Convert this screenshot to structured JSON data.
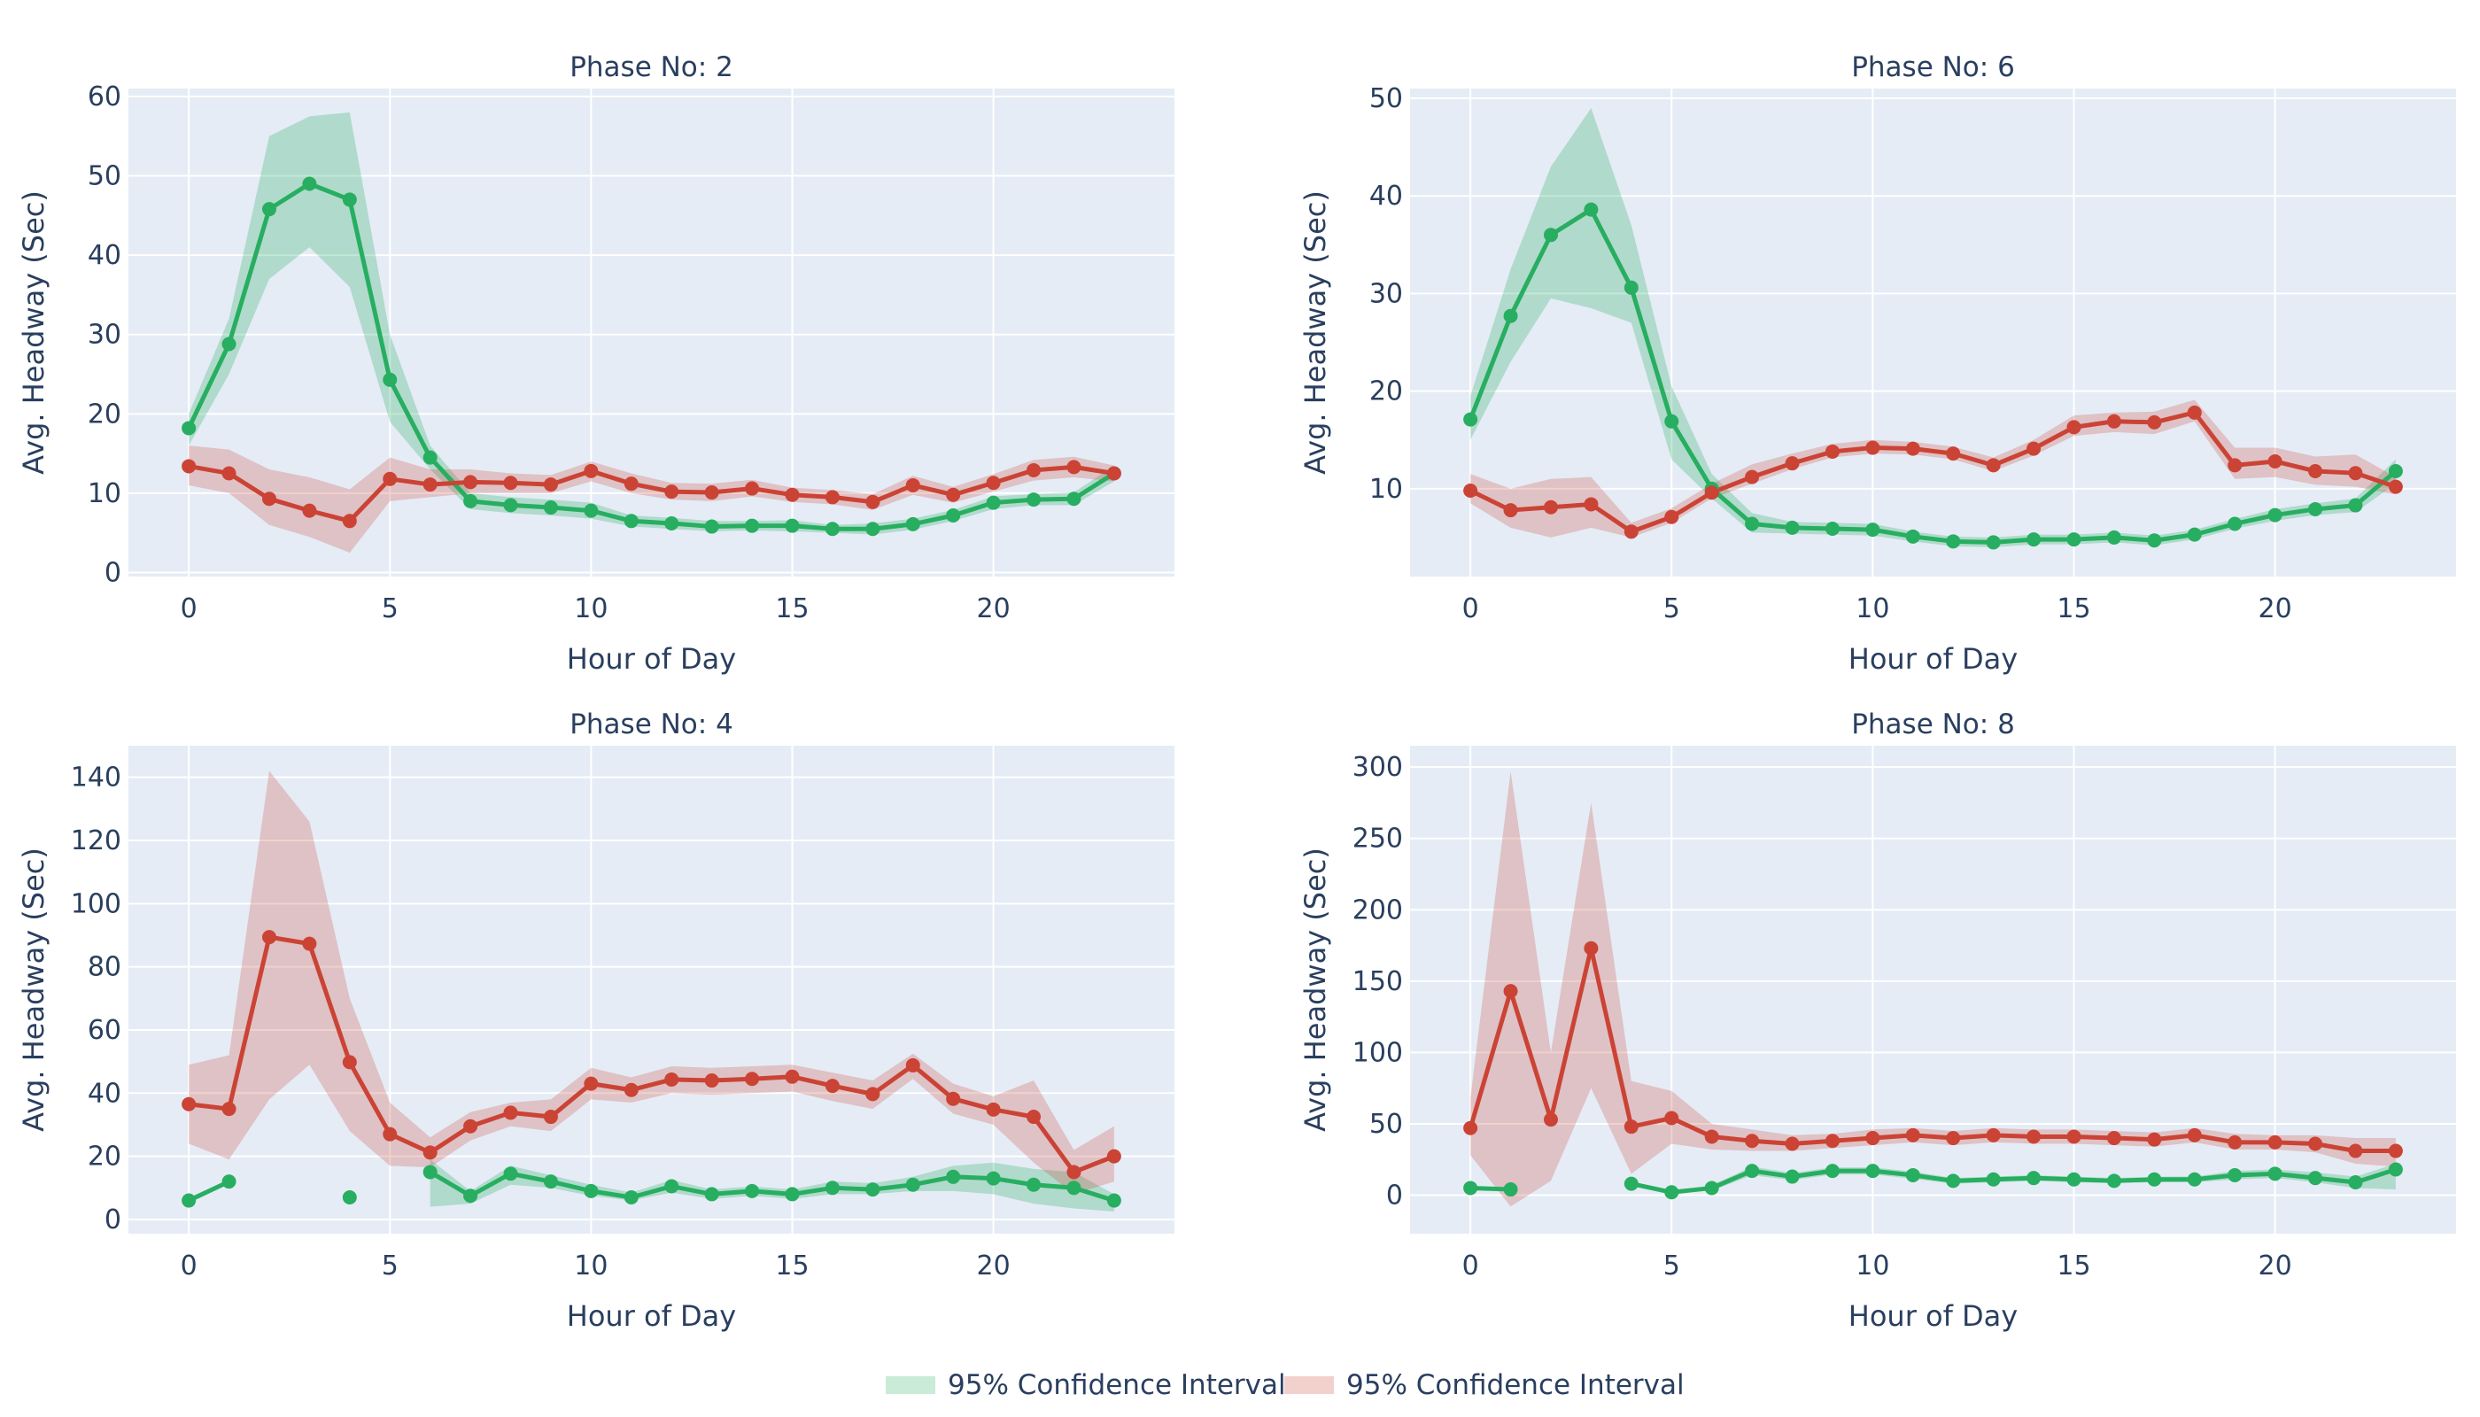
{
  "chart_data": [
    {
      "type": "line",
      "title": "Phase No: 2",
      "xlabel": "Hour of Day",
      "ylabel": "Avg. Headway (Sec)",
      "xlim": [
        -1.5,
        24.5
      ],
      "ylim": [
        -0.5,
        61
      ],
      "xticks": [
        0,
        5,
        10,
        15,
        20
      ],
      "yticks": [
        0,
        10,
        20,
        30,
        40,
        50,
        60
      ],
      "series": [
        {
          "color": "#27ae60",
          "x": [
            0,
            1,
            2,
            3,
            4,
            5,
            6,
            7,
            8,
            9,
            10,
            11,
            12,
            13,
            14,
            15,
            16,
            17,
            18,
            19,
            20,
            21,
            22,
            23
          ],
          "y": [
            18.2,
            28.8,
            45.8,
            49,
            47,
            24.3,
            14.5,
            9,
            8.5,
            8.2,
            7.8,
            6.5,
            6.2,
            5.8,
            5.9,
            5.9,
            5.5,
            5.5,
            6.1,
            7.2,
            8.8,
            9.2,
            9.3,
            12.5
          ],
          "ci_lower": [
            16,
            25,
            37,
            41,
            36,
            19,
            13,
            8,
            7.5,
            7.2,
            6.8,
            5.8,
            5.5,
            5.2,
            5.3,
            5.2,
            5,
            4.8,
            5.4,
            6.5,
            8,
            8.5,
            8.5,
            11.5
          ],
          "ci_upper": [
            20,
            32,
            55,
            57.5,
            58,
            30,
            16,
            10,
            9.5,
            9.2,
            8.8,
            7.2,
            6.9,
            6.5,
            6.5,
            6.6,
            6,
            6.2,
            6.8,
            7.9,
            9.6,
            9.9,
            10.1,
            13.5
          ]
        },
        {
          "color": "#cb4335",
          "x": [
            0,
            1,
            2,
            3,
            4,
            5,
            6,
            7,
            8,
            9,
            10,
            11,
            12,
            13,
            14,
            15,
            16,
            17,
            18,
            19,
            20,
            21,
            22,
            23
          ],
          "y": [
            13.4,
            12.5,
            9.3,
            7.8,
            6.5,
            11.8,
            11.1,
            11.4,
            11.3,
            11.1,
            12.8,
            11.2,
            10.2,
            10.1,
            10.6,
            9.8,
            9.5,
            8.9,
            11,
            9.8,
            11.3,
            12.9,
            13.3,
            12.5
          ],
          "ci_lower": [
            11,
            10,
            6,
            4.5,
            2.5,
            9,
            9.5,
            10,
            10,
            10,
            11.5,
            10,
            9.2,
            9,
            9.6,
            8.9,
            8.6,
            7.9,
            9.8,
            8.8,
            10.2,
            11.6,
            12,
            11.5
          ],
          "ci_upper": [
            16,
            15.5,
            13,
            12,
            10.5,
            14.5,
            13,
            13,
            12.5,
            12.3,
            14,
            12.5,
            11.3,
            11.2,
            11.7,
            10.7,
            10.4,
            9.9,
            12.2,
            10.8,
            12.4,
            14.2,
            14.6,
            13.5
          ]
        }
      ]
    },
    {
      "type": "line",
      "title": "Phase No: 6",
      "xlabel": "Hour of Day",
      "ylabel": "Avg. Headway (Sec)",
      "xlim": [
        -1.5,
        24.5
      ],
      "ylim": [
        1,
        51
      ],
      "xticks": [
        0,
        5,
        10,
        15,
        20
      ],
      "yticks": [
        10,
        20,
        30,
        40,
        50
      ],
      "series": [
        {
          "color": "#27ae60",
          "x": [
            0,
            1,
            2,
            3,
            4,
            5,
            6,
            7,
            8,
            9,
            10,
            11,
            12,
            13,
            14,
            15,
            16,
            17,
            18,
            19,
            20,
            21,
            22,
            23
          ],
          "y": [
            17.1,
            27.7,
            36,
            38.6,
            30.6,
            16.9,
            10,
            6.4,
            6,
            5.9,
            5.8,
            5.1,
            4.6,
            4.5,
            4.8,
            4.8,
            5,
            4.7,
            5.3,
            6.4,
            7.3,
            7.9,
            8.3,
            11.8
          ],
          "ci_lower": [
            15,
            23,
            29.5,
            28.5,
            27,
            13,
            9,
            5.5,
            5.4,
            5.3,
            5.2,
            4.6,
            4.1,
            4,
            4.3,
            4.3,
            4.5,
            4.2,
            4.8,
            5.9,
            6.7,
            7.3,
            7.6,
            10.5
          ],
          "ci_upper": [
            19.5,
            32.5,
            43,
            49,
            37,
            20.5,
            11.5,
            7.5,
            6.6,
            6.5,
            6.4,
            5.6,
            5.1,
            5,
            5.3,
            5.3,
            5.5,
            5.2,
            5.8,
            6.9,
            7.9,
            8.5,
            9,
            13
          ]
        },
        {
          "color": "#cb4335",
          "x": [
            0,
            1,
            2,
            3,
            4,
            5,
            6,
            7,
            8,
            9,
            10,
            11,
            12,
            13,
            14,
            15,
            16,
            17,
            18,
            19,
            20,
            21,
            22,
            23
          ],
          "y": [
            9.8,
            7.8,
            8.1,
            8.4,
            5.6,
            7.1,
            9.6,
            11.2,
            12.6,
            13.8,
            14.2,
            14.1,
            13.6,
            12.4,
            14.1,
            16.3,
            16.9,
            16.8,
            17.8,
            12.4,
            12.8,
            11.8,
            11.6,
            10.2
          ],
          "ci_lower": [
            8.5,
            6,
            5,
            6,
            5,
            6.5,
            9,
            10.5,
            12,
            13.2,
            13.6,
            13.5,
            13,
            11.8,
            13.4,
            15.4,
            15.8,
            15.6,
            16.9,
            11,
            11.2,
            10.4,
            10.2,
            9.4
          ],
          "ci_upper": [
            11.5,
            10,
            11,
            11.2,
            6.5,
            8,
            10.5,
            12.5,
            13.6,
            14.6,
            15,
            14.8,
            14.3,
            13.2,
            15,
            17.5,
            17.8,
            17.9,
            19.1,
            14.2,
            14.2,
            13.3,
            13.5,
            11.2
          ]
        }
      ]
    },
    {
      "type": "line",
      "title": "Phase No: 4",
      "xlabel": "Hour of Day",
      "ylabel": "Avg. Headway (Sec)",
      "xlim": [
        -1.5,
        24.5
      ],
      "ylim": [
        -4.5,
        150
      ],
      "xticks": [
        0,
        5,
        10,
        15,
        20
      ],
      "yticks": [
        0,
        20,
        40,
        60,
        80,
        100,
        120,
        140
      ],
      "series": [
        {
          "color": "#27ae60",
          "x": [
            0,
            1,
            2,
            3,
            4,
            5,
            6,
            7,
            8,
            9,
            10,
            11,
            12,
            13,
            14,
            15,
            16,
            17,
            18,
            19,
            20,
            21,
            22,
            23
          ],
          "y": [
            6,
            12,
            null,
            null,
            7,
            null,
            15,
            7.5,
            14.5,
            12,
            9,
            7,
            10.5,
            8,
            9,
            8,
            10,
            9.5,
            11,
            13.5,
            13,
            11,
            10,
            6
          ],
          "ci_lower": [
            null,
            null,
            null,
            null,
            null,
            null,
            4,
            5,
            11,
            10,
            7.5,
            6,
            8.5,
            6.5,
            7.5,
            6.5,
            8,
            8,
            9,
            9,
            8,
            5,
            3.5,
            2.5
          ],
          "ci_upper": [
            null,
            null,
            null,
            null,
            null,
            null,
            19,
            9,
            17,
            14,
            11,
            8.5,
            12.5,
            9.5,
            10.5,
            9.5,
            12,
            11.5,
            13.5,
            17,
            18,
            16,
            15,
            8
          ]
        },
        {
          "color": "#cb4335",
          "x": [
            0,
            1,
            2,
            3,
            4,
            5,
            6,
            7,
            8,
            9,
            10,
            11,
            12,
            13,
            14,
            15,
            16,
            17,
            18,
            19,
            20,
            21,
            22,
            23
          ],
          "y": [
            36.5,
            35,
            89.4,
            87.3,
            49.8,
            27,
            21.2,
            29.5,
            33.8,
            32.5,
            43,
            41,
            44.3,
            44,
            44.5,
            45.2,
            42.3,
            39.7,
            48.8,
            38.2,
            34.8,
            32.5,
            15,
            20
          ],
          "ci_lower": [
            24,
            19,
            38,
            49,
            28,
            17,
            16.5,
            25,
            29.5,
            28,
            38,
            37,
            40,
            39.5,
            40,
            40.5,
            37.5,
            35,
            44.5,
            33.5,
            30,
            18,
            8,
            12
          ],
          "ci_upper": [
            49,
            52,
            142,
            126,
            70,
            37,
            26,
            34,
            37,
            38,
            48,
            45,
            48.5,
            48,
            48.5,
            49,
            46.5,
            44,
            52.5,
            43,
            39,
            44,
            22,
            29.5
          ]
        }
      ]
    },
    {
      "type": "line",
      "title": "Phase No: 8",
      "xlabel": "Hour of Day",
      "ylabel": "Avg. Headway (Sec)",
      "xlim": [
        -1.5,
        24.5
      ],
      "ylim": [
        -27,
        315
      ],
      "xticks": [
        0,
        5,
        10,
        15,
        20
      ],
      "yticks": [
        0,
        50,
        100,
        150,
        200,
        250,
        300
      ],
      "series": [
        {
          "color": "#27ae60",
          "x": [
            0,
            1,
            2,
            3,
            4,
            5,
            6,
            7,
            8,
            9,
            10,
            11,
            12,
            13,
            14,
            15,
            16,
            17,
            18,
            19,
            20,
            21,
            22,
            23
          ],
          "y": [
            5,
            4,
            null,
            null,
            8,
            2,
            5,
            17,
            13,
            17,
            17,
            14,
            10,
            11,
            12,
            11,
            10,
            11,
            11,
            14,
            15,
            12,
            9,
            18
          ],
          "ci_lower": [
            null,
            null,
            null,
            null,
            null,
            null,
            3,
            14,
            10.5,
            14.5,
            14.5,
            11.5,
            8,
            9,
            10,
            9,
            8.5,
            9,
            9,
            11,
            12,
            9,
            5,
            4
          ],
          "ci_upper": [
            null,
            null,
            null,
            null,
            null,
            null,
            7,
            20,
            15.5,
            19.5,
            19.5,
            16.5,
            12,
            13,
            14,
            13,
            12,
            13,
            13,
            17,
            18,
            16,
            13,
            22
          ]
        },
        {
          "color": "#cb4335",
          "x": [
            0,
            1,
            2,
            3,
            4,
            5,
            6,
            7,
            8,
            9,
            10,
            11,
            12,
            13,
            14,
            15,
            16,
            17,
            18,
            19,
            20,
            21,
            22,
            23
          ],
          "y": [
            47,
            143,
            53,
            173,
            48,
            54,
            41,
            38,
            36,
            38,
            40,
            42,
            40,
            42,
            41,
            41,
            40,
            39,
            42,
            37,
            37,
            36,
            31,
            31
          ],
          "ci_lower": [
            28,
            -8,
            10,
            75,
            15,
            36,
            32,
            31,
            31,
            33,
            35,
            37,
            35,
            37,
            36,
            36,
            35,
            34,
            37,
            32,
            32,
            30,
            22,
            20
          ],
          "ci_upper": [
            68,
            297,
            100,
            275,
            80,
            73,
            50,
            46,
            42,
            43,
            46,
            47,
            45,
            47,
            46,
            46,
            45,
            44,
            47,
            43,
            42,
            42,
            40,
            40
          ]
        }
      ]
    }
  ],
  "legend": [
    {
      "label": "95% Confidence Interval",
      "color": "rgba(39,174,96,0.25)"
    },
    {
      "label": "95% Confidence Interval",
      "color": "rgba(203,67,53,0.25)"
    }
  ]
}
